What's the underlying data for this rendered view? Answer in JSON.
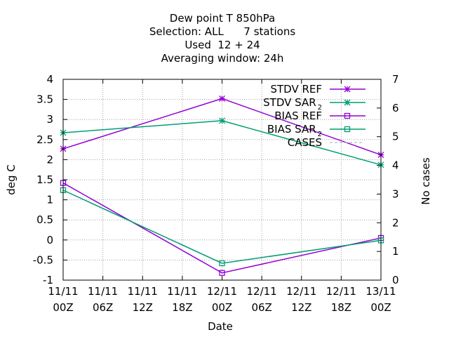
{
  "chart_data": {
    "type": "line",
    "title_lines": [
      "Dew point T 850hPa",
      "Selection: ALL      7 stations",
      "Used  12 + 24",
      "Averaging window: 24h"
    ],
    "xlabel": "Date",
    "ylabel": "deg C",
    "y2label": "No cases",
    "x_ticks": [
      {
        "line1": "11/11",
        "line2": "00Z"
      },
      {
        "line1": "11/11",
        "line2": "06Z"
      },
      {
        "line1": "11/11",
        "line2": "12Z"
      },
      {
        "line1": "11/11",
        "line2": "18Z"
      },
      {
        "line1": "12/11",
        "line2": "00Z"
      },
      {
        "line1": "12/11",
        "line2": "06Z"
      },
      {
        "line1": "12/11",
        "line2": "12Z"
      },
      {
        "line1": "12/11",
        "line2": "18Z"
      },
      {
        "line1": "13/11",
        "line2": "00Z"
      }
    ],
    "x_hours_range": [
      0,
      48
    ],
    "y_ticks": [
      "4",
      "3.5",
      "3",
      "2.5",
      "2",
      "1.5",
      "1",
      "0.5",
      "0",
      "-0.5",
      "-1"
    ],
    "ylim": [
      -1,
      4
    ],
    "y2_ticks": [
      "7",
      "6",
      "5",
      "4",
      "3",
      "2",
      "1",
      "0"
    ],
    "y2lim": [
      0,
      7
    ],
    "grid": true,
    "legend_position": "top-right",
    "series": [
      {
        "name": "STDV REF",
        "sub": "",
        "color": "#9400d3",
        "marker": "star",
        "x_hours": [
          0,
          24,
          48
        ],
        "values": [
          2.27,
          3.52,
          2.12
        ]
      },
      {
        "name": "STDV SAR",
        "sub": "2",
        "color": "#009e73",
        "marker": "star",
        "x_hours": [
          0,
          24,
          48
        ],
        "values": [
          2.67,
          2.97,
          1.87
        ]
      },
      {
        "name": "BIAS REF",
        "sub": "",
        "color": "#9400d3",
        "marker": "square",
        "x_hours": [
          0,
          24,
          48
        ],
        "values": [
          1.42,
          -0.82,
          0.05
        ]
      },
      {
        "name": "BIAS SAR",
        "sub": "2",
        "color": "#009e73",
        "marker": "square",
        "x_hours": [
          0,
          24,
          48
        ],
        "values": [
          1.24,
          -0.58,
          -0.01
        ]
      },
      {
        "name": "CASES",
        "sub": "",
        "color": "#aaaaaa",
        "marker": "none",
        "axis": "y2",
        "x_hours": [],
        "values": []
      }
    ]
  }
}
